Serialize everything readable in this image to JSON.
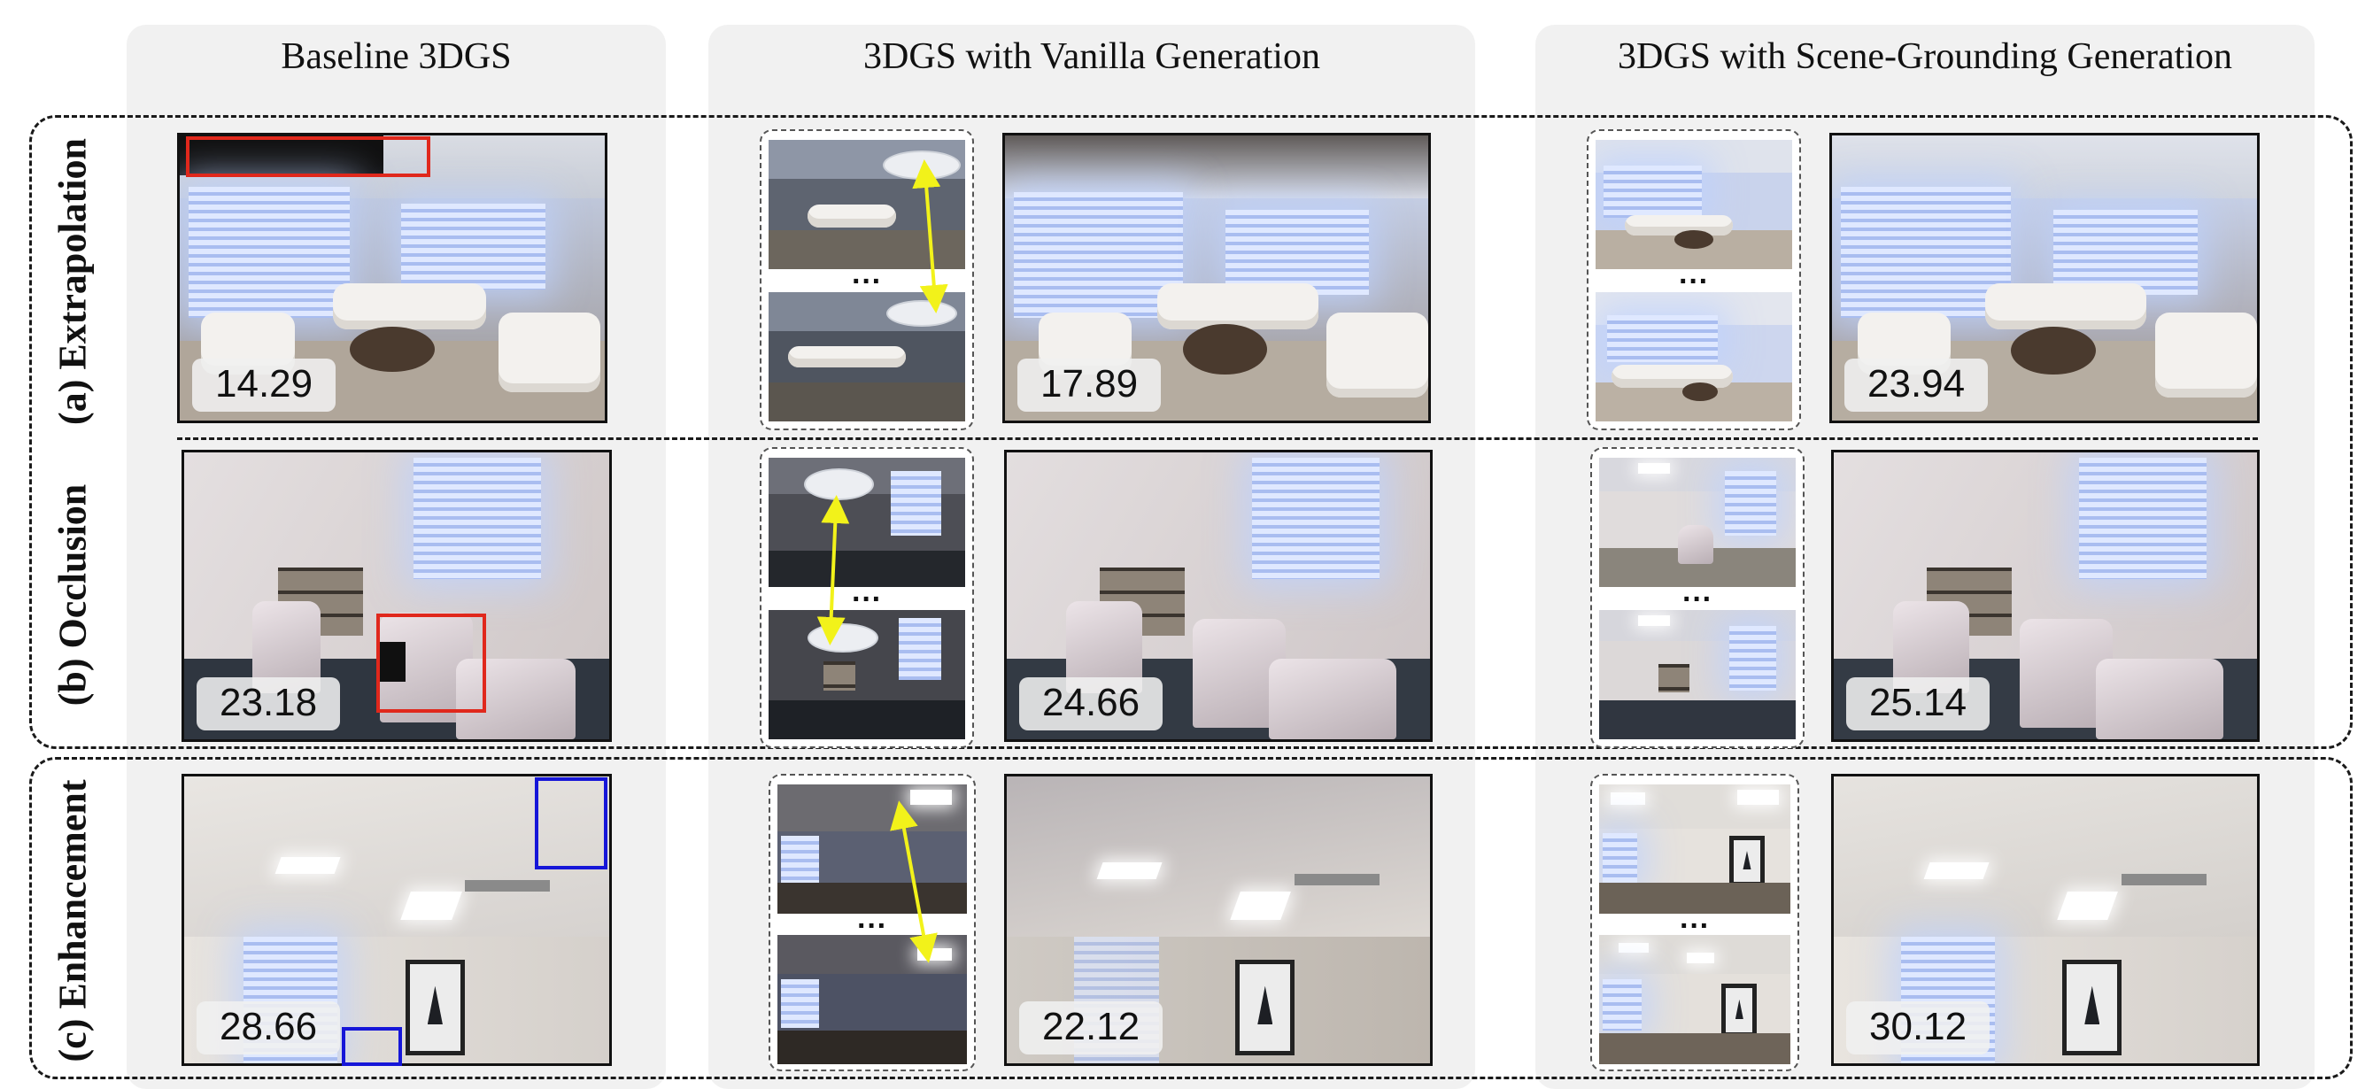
{
  "columns": [
    {
      "title": "Baseline 3DGS"
    },
    {
      "title": "3DGS with Vanilla Generation"
    },
    {
      "title": "3DGS with Scene-Grounding Generation"
    }
  ],
  "rows": [
    {
      "label": "(a) Extrapolation",
      "scores": {
        "baseline": "14.29",
        "vanilla": "17.89",
        "grounded": "23.94"
      }
    },
    {
      "label": "(b) Occlusion",
      "scores": {
        "baseline": "23.18",
        "vanilla": "24.66",
        "grounded": "25.14"
      }
    },
    {
      "label": "(c) Enhancement",
      "scores": {
        "baseline": "28.66",
        "vanilla": "22.12",
        "grounded": "30.12"
      }
    }
  ],
  "ellipsis": "···",
  "colors": {
    "column_bg": "#f1f1f1",
    "dashed_border": "#1a1a1a",
    "highlight_red": "#e0281c",
    "highlight_blue": "#1616d8",
    "arrow_yellow": "#f2f21a"
  }
}
